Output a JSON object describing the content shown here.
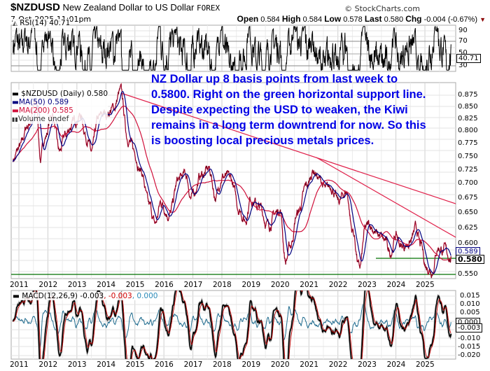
{
  "header": {
    "symbol": "$NZDUSD",
    "name": "New Zealand Dollar to US Dollar",
    "exchange": "FOREX",
    "date": "7-Oct-2025 11:01pm",
    "copyright": "© StockCharts.com",
    "open_label": "Open",
    "open": "0.584",
    "high_label": "High",
    "high": "0.584",
    "low_label": "Low",
    "low": "0.578",
    "last_label": "Last",
    "last": "0.580",
    "chg_label": "Chg",
    "chg": "-0.004 (-0.67%)",
    "chg_arrow": "▼"
  },
  "rsi_panel": {
    "legend": "RSI(14) 40.71",
    "axis": [
      "90",
      "70",
      "50",
      "30"
    ],
    "current_tag": "40.71"
  },
  "price_panel": {
    "legend": {
      "price": "$NZDUSD (Daily) 0.580",
      "ma50": "MA(50) 0.589",
      "ma200": "MA(200) 0.585",
      "volume": "Volume undef"
    },
    "axis": [
      "0.875",
      "0.850",
      "0.825",
      "0.800",
      "0.775",
      "0.750",
      "0.725",
      "0.700",
      "0.675",
      "0.650",
      "0.625",
      "0.600",
      "0.589",
      "0.580",
      "0.550"
    ],
    "tags": {
      "ma50": "0.589",
      "last": "0.580"
    },
    "annotation": "NZ Dollar up 8 basis points from last week to 0.5800. Right on the green horizontal support line. Despite expecting the USD to weaken, the Kiwi remains in a long term downtrend for now. So this is boosting local precious metals prices."
  },
  "macd_panel": {
    "legend_main": "MACD(12,26,9) -0.003",
    "legend_signal": ", -0.003",
    "legend_hist": ", 0.000",
    "axis": [
      "0.015",
      "0.010",
      "0.005",
      "0.000",
      "-0.005",
      "-0.010",
      "-0.015",
      "-0.020"
    ],
    "tags": {
      "hist": "0.000",
      "macd": "-0.003"
    }
  },
  "years": [
    "2011",
    "2012",
    "2013",
    "2014",
    "2015",
    "2016",
    "2017",
    "2018",
    "2019",
    "2020",
    "2021",
    "2022",
    "2023",
    "2024",
    "2025"
  ],
  "colors": {
    "price": "#d0103a",
    "ma50": "#000080",
    "ma200": "#d0103a",
    "support": "#007000",
    "trend": "#e0204a",
    "annotation": "#0000e6",
    "macd_hist": "#1f6b8e",
    "grid": "#dddddd"
  },
  "chart_data": {
    "type": "line",
    "title": "$NZDUSD New Zealand Dollar to US Dollar FOREX (Daily)",
    "xlabel": "",
    "ylabel": "",
    "x": [
      "2011",
      "2012",
      "2013",
      "2014",
      "2015",
      "2016",
      "2017",
      "2018",
      "2019",
      "2020",
      "2021",
      "2022",
      "2023",
      "2024",
      "2025"
    ],
    "ylim": [
      0.545,
      0.885
    ],
    "series": [
      {
        "name": "$NZDUSD (Daily)",
        "values": [
          0.78,
          0.8,
          0.82,
          0.84,
          0.78,
          0.66,
          0.71,
          0.72,
          0.67,
          0.65,
          0.71,
          0.7,
          0.61,
          0.6,
          0.58
        ],
        "last": 0.58
      },
      {
        "name": "MA(50)",
        "last": 0.589
      },
      {
        "name": "MA(200)",
        "last": 0.585
      }
    ],
    "annotations": [
      {
        "type": "hline",
        "name": "support",
        "y": 0.58,
        "from": "2022.8",
        "to": "2025.9",
        "color": "green"
      },
      {
        "type": "hline",
        "name": "support",
        "y": 0.553,
        "color": "green"
      },
      {
        "type": "trendline",
        "from": [
          2014.5,
          0.88
        ],
        "to": [
          2025.9,
          0.662
        ],
        "color": "red"
      },
      {
        "type": "trendline",
        "from": [
          2021.0,
          0.745
        ],
        "to": [
          2025.9,
          0.605
        ],
        "color": "red"
      },
      {
        "type": "text",
        "value": "NZ Dollar up 8 basis points from last week to 0.5800..."
      }
    ],
    "indicators": [
      {
        "name": "RSI(14)",
        "value": 40.71,
        "ylim": [
          20,
          95
        ],
        "levels": [
          70,
          30
        ]
      },
      {
        "name": "MACD(12,26,9)",
        "macd": -0.003,
        "signal": -0.003,
        "histogram": 0.0,
        "ylim": [
          -0.022,
          0.018
        ]
      }
    ],
    "grid": true,
    "legend_position": "top-left"
  }
}
